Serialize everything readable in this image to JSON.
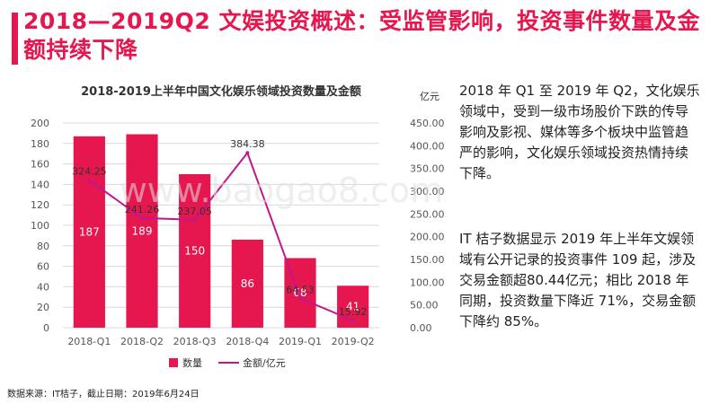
{
  "header": {
    "title": "2018—2019Q2 文娱投资概述：受监管影响，投资事件数量及金额持续下降",
    "accent_color": "#e6174f"
  },
  "chart_data": {
    "type": "bar+line",
    "title": "2018-2019上半年中国文化娱乐领域投资数量及金额",
    "categories": [
      "2018-Q1",
      "2018-Q2",
      "2018-Q3",
      "2018-Q4",
      "2019-Q1",
      "2019-Q2"
    ],
    "series": [
      {
        "name": "数量",
        "type": "bar",
        "axis": "left",
        "color": "#e6174f",
        "values": [
          187,
          189,
          150,
          86,
          68,
          41
        ]
      },
      {
        "name": "金额/亿元",
        "type": "line",
        "axis": "right",
        "color": "#c2168f",
        "values": [
          324.25,
          241.26,
          237.05,
          384.38,
          64.53,
          15.92
        ]
      }
    ],
    "y_left": {
      "min": 0,
      "max": 200,
      "step": 20,
      "tick_labels": [
        "0",
        "20",
        "40",
        "60",
        "80",
        "100",
        "120",
        "140",
        "160",
        "180",
        "200"
      ]
    },
    "y_right": {
      "label": "亿元",
      "min": 0,
      "max": 450,
      "step": 50,
      "tick_labels": [
        "0.00",
        "50.00",
        "100.00",
        "150.00",
        "200.00",
        "250.00",
        "300.00",
        "350.00",
        "400.00",
        "450.00"
      ]
    },
    "bar_value_labels": [
      "187",
      "189",
      "150",
      "86",
      "68",
      "41"
    ],
    "line_value_labels": [
      "324.25",
      "241.26",
      "237.05",
      "384.38",
      "64.53",
      "15.92"
    ],
    "grid": true,
    "legend_position": "bottom"
  },
  "text": {
    "para1": "2018 年 Q1 至 2019 年 Q2，文化娱乐领域中，受到一级市场股价下跌的传导影响及影视、媒体等多个板块中监管趋严的影响，文化娱乐领域投资热情持续下降。",
    "para2": "IT 桔子数据显示 2019 年上半年文娱领域有公开记录的投资事件 109 起，涉及交易金额超80.44亿元；相比 2018 年同期，投资数量下降近 71%，交易金额下降约 85%。"
  },
  "footer": {
    "source": "数据来源：IT桔子，截止日期：2019年6月24日"
  },
  "watermark": "www.baogao8.com"
}
